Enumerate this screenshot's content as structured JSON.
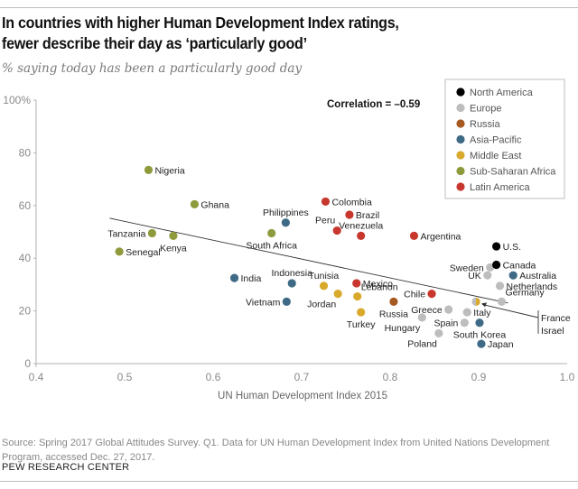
{
  "chart_data": {
    "type": "scatter",
    "title": "In countries with higher Human Development Index ratings, fewer describe their day as ‘particularly good’",
    "title_lines": [
      "In countries with higher Human Development Index ratings,",
      "fewer describe their day as ‘particularly good’"
    ],
    "subtitle": "% saying today has been a particularly good day",
    "xlabel": "UN Human Development Index 2015",
    "ylabel": "",
    "xlim": [
      0.4,
      1.0
    ],
    "ylim": [
      0,
      100
    ],
    "x_ticks": [
      {
        "value": 0.4,
        "label": "0.4"
      },
      {
        "value": 0.5,
        "label": "0.5"
      },
      {
        "value": 0.6,
        "label": "0.6"
      },
      {
        "value": 0.7,
        "label": "0.7"
      },
      {
        "value": 0.8,
        "label": "0.8"
      },
      {
        "value": 0.9,
        "label": "0.9"
      },
      {
        "value": 1.0,
        "label": "1.0"
      }
    ],
    "y_ticks": [
      {
        "value": 0,
        "label": "0"
      },
      {
        "value": 20,
        "label": "20"
      },
      {
        "value": 40,
        "label": "40"
      },
      {
        "value": 60,
        "label": "60"
      },
      {
        "value": 80,
        "label": "80"
      },
      {
        "value": 100,
        "label": "100%"
      }
    ],
    "grid": false,
    "annotation": "Correlation = –0.59",
    "trend_line": {
      "x": [
        0.483,
        0.933
      ],
      "y": [
        55.2,
        23.0
      ]
    },
    "legend_position": "top-right",
    "regions": [
      {
        "name": "North America",
        "color": "#000000"
      },
      {
        "name": "Europe",
        "color": "#bdbdbd"
      },
      {
        "name": "Russia",
        "color": "#a65a22"
      },
      {
        "name": "Asia-Pacific",
        "color": "#3f6a86"
      },
      {
        "name": "Middle East",
        "color": "#d9a92c"
      },
      {
        "name": "Sub-Saharan Africa",
        "color": "#8f9a3c"
      },
      {
        "name": "Latin America",
        "color": "#c8372d"
      }
    ],
    "points": [
      {
        "label": "Nigeria",
        "region": "Sub-Saharan Africa",
        "x": 0.527,
        "y": 73.5,
        "lpos": "right"
      },
      {
        "label": "Ghana",
        "region": "Sub-Saharan Africa",
        "x": 0.579,
        "y": 60.5,
        "lpos": "right"
      },
      {
        "label": "Tanzania",
        "region": "Sub-Saharan Africa",
        "x": 0.531,
        "y": 49.5,
        "lpos": "left"
      },
      {
        "label": "Kenya",
        "region": "Sub-Saharan Africa",
        "x": 0.555,
        "y": 48.5,
        "lpos": "below"
      },
      {
        "label": "Senegal",
        "region": "Sub-Saharan Africa",
        "x": 0.494,
        "y": 42.5,
        "lpos": "right"
      },
      {
        "label": "South Africa",
        "region": "Sub-Saharan Africa",
        "x": 0.666,
        "y": 49.5,
        "lpos": "below"
      },
      {
        "label": "Philippines",
        "region": "Asia-Pacific",
        "x": 0.682,
        "y": 53.5,
        "lpos": "above"
      },
      {
        "label": "India",
        "region": "Asia-Pacific",
        "x": 0.624,
        "y": 32.5,
        "lpos": "right"
      },
      {
        "label": "Indonesia",
        "region": "Asia-Pacific",
        "x": 0.689,
        "y": 30.5,
        "lpos": "above"
      },
      {
        "label": "Vietnam",
        "region": "Asia-Pacific",
        "x": 0.683,
        "y": 23.5,
        "lpos": "left"
      },
      {
        "label": "South Korea",
        "region": "Asia-Pacific",
        "x": 0.901,
        "y": 15.5,
        "lpos": "below"
      },
      {
        "label": "Japan",
        "region": "Asia-Pacific",
        "x": 0.903,
        "y": 7.5,
        "lpos": "right"
      },
      {
        "label": "Australia",
        "region": "Asia-Pacific",
        "x": 0.939,
        "y": 33.5,
        "lpos": "right"
      },
      {
        "label": "Colombia",
        "region": "Latin America",
        "x": 0.727,
        "y": 61.5,
        "lpos": "right"
      },
      {
        "label": "Brazil",
        "region": "Latin America",
        "x": 0.754,
        "y": 56.5,
        "lpos": "right"
      },
      {
        "label": "Peru",
        "region": "Latin America",
        "x": 0.74,
        "y": 50.5,
        "lpos": "above-left"
      },
      {
        "label": "Venezuela",
        "region": "Latin America",
        "x": 0.767,
        "y": 48.5,
        "lpos": "above"
      },
      {
        "label": "Argentina",
        "region": "Latin America",
        "x": 0.827,
        "y": 48.5,
        "lpos": "right"
      },
      {
        "label": "Mexico",
        "region": "Latin America",
        "x": 0.762,
        "y": 30.5,
        "lpos": "right"
      },
      {
        "label": "Chile",
        "region": "Latin America",
        "x": 0.847,
        "y": 26.5,
        "lpos": "left"
      },
      {
        "label": "Tunisia",
        "region": "Middle East",
        "x": 0.725,
        "y": 29.5,
        "lpos": "above"
      },
      {
        "label": "Jordan",
        "region": "Middle East",
        "x": 0.741,
        "y": 26.5,
        "lpos": "below-left"
      },
      {
        "label": "Lebanon",
        "region": "Middle East",
        "x": 0.763,
        "y": 25.5,
        "lpos": "above-right"
      },
      {
        "label": "Turkey",
        "region": "Middle East",
        "x": 0.767,
        "y": 19.5,
        "lpos": "below"
      },
      {
        "label": "Russia",
        "region": "Russia",
        "x": 0.804,
        "y": 23.5,
        "lpos": "below"
      },
      {
        "label": "Greece",
        "region": "Europe",
        "x": 0.866,
        "y": 20.5,
        "lpos": "left"
      },
      {
        "label": "Hungary",
        "region": "Europe",
        "x": 0.836,
        "y": 17.5,
        "lpos": "below-left"
      },
      {
        "label": "Spain",
        "region": "Europe",
        "x": 0.884,
        "y": 15.5,
        "lpos": "left"
      },
      {
        "label": "Poland",
        "region": "Europe",
        "x": 0.855,
        "y": 11.5,
        "lpos": "below-left"
      },
      {
        "label": "Italy",
        "region": "Europe",
        "x": 0.887,
        "y": 19.5,
        "lpos": "right"
      },
      {
        "label": "France / Israel",
        "region": "Europe / Middle East",
        "x": 0.897,
        "y": 23.5,
        "lpos": "callout",
        "split_colors": [
          "#bdbdbd",
          "#d9a92c"
        ],
        "callout_labels": [
          "France",
          "Israel"
        ]
      },
      {
        "label": "Sweden",
        "region": "Europe",
        "x": 0.913,
        "y": 36.5,
        "lpos": "left"
      },
      {
        "label": "UK",
        "region": "Europe",
        "x": 0.91,
        "y": 33.5,
        "lpos": "left"
      },
      {
        "label": "Netherlands",
        "region": "Europe",
        "x": 0.924,
        "y": 29.5,
        "lpos": "right"
      },
      {
        "label": "Germany",
        "region": "Europe",
        "x": 0.926,
        "y": 23.5,
        "lpos": "above-right"
      },
      {
        "label": "U.S.",
        "region": "North America",
        "x": 0.92,
        "y": 44.5,
        "lpos": "right"
      },
      {
        "label": "Canada",
        "region": "North America",
        "x": 0.92,
        "y": 37.5,
        "lpos": "right"
      }
    ]
  },
  "footer": {
    "source": "Source: Spring 2017 Global Attitudes Survey. Q1. Data for UN Human Development Index from United Nations Development Program, accessed Dec. 27, 2017.",
    "credit": "PEW RESEARCH CENTER"
  }
}
